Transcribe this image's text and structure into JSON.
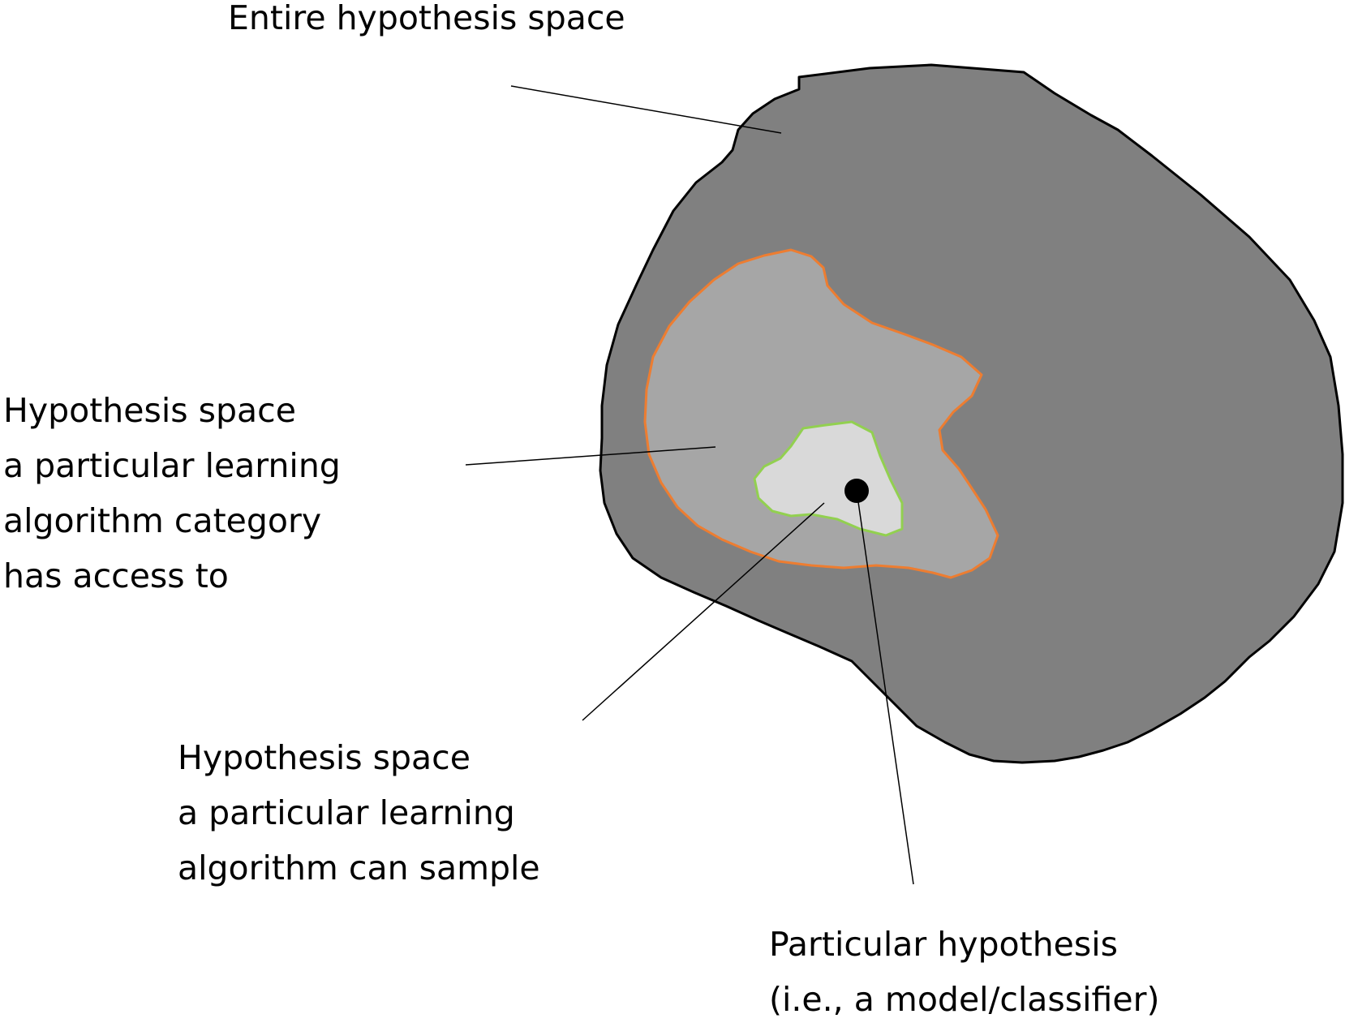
{
  "labels": {
    "entire": [
      "Entire hypothesis space"
    ],
    "category": [
      "Hypothesis space",
      "a particular learning",
      "algorithm category",
      "has access to"
    ],
    "sample": [
      "Hypothesis space",
      "a particular learning",
      "algorithm can sample"
    ],
    "particular": [
      "Particular hypothesis",
      "(i.e., a model/classifier)"
    ]
  },
  "colors": {
    "entire_fill": "#808080",
    "entire_stroke": "#000000",
    "category_fill": "#a6a6a6",
    "category_stroke": "#ed7d31",
    "sample_fill": "#d9d9d9",
    "sample_stroke": "#92d050",
    "point_fill": "#000000",
    "leader_line": "#000000"
  }
}
